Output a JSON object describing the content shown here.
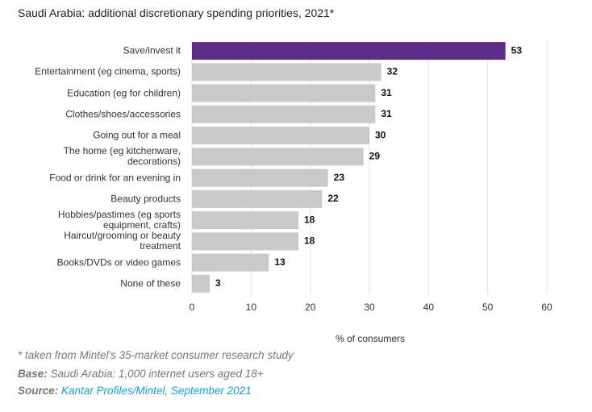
{
  "chart_data": {
    "type": "barh",
    "title": "Saudi Arabia: additional discretionary spending priorities, 2021*",
    "categories": [
      "Save/invest it",
      "Entertainment (eg cinema, sports)",
      "Education (eg for children)",
      "Clothes/shoes/accessories",
      "Going out for a meal",
      "The home (eg kitchenware,\ndecorations)",
      "Food or drink for an evening in",
      "Beauty products",
      "Hobbies/pastimes (eg sports\nequipment, crafts)",
      "Haircut/grooming or beauty\ntreatment",
      "Books/DVDs or video games",
      "None of these"
    ],
    "values": [
      53,
      32,
      31,
      31,
      30,
      29,
      23,
      22,
      18,
      18,
      13,
      3
    ],
    "colors": [
      "#5c2d86",
      "#c9c9c9",
      "#c9c9c9",
      "#c9c9c9",
      "#c9c9c9",
      "#c9c9c9",
      "#c9c9c9",
      "#c9c9c9",
      "#c9c9c9",
      "#c9c9c9",
      "#c9c9c9",
      "#c9c9c9"
    ],
    "xlim": [
      0,
      60
    ],
    "xticks": [
      0,
      10,
      20,
      30,
      40,
      50,
      60
    ],
    "grid": true,
    "xlabel": "% of consumers"
  },
  "notes": {
    "footnote": "* taken from Mintel's 35-market consumer research study",
    "base_label": "Base:",
    "base": "Saudi Arabia: 1,000 internet users aged 18+",
    "source_label": "Source:",
    "source": "Kantar Profiles/Mintel, September 2021"
  }
}
